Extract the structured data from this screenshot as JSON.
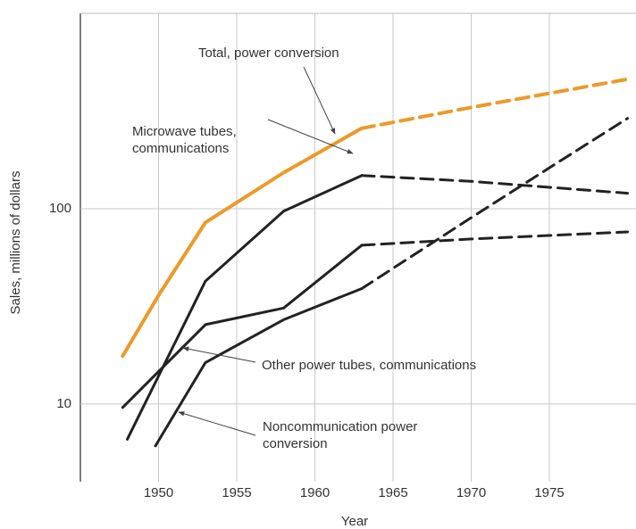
{
  "chart_data": {
    "type": "line",
    "x_label": "Year",
    "y_label": "Sales, millions of dollars",
    "xlim": [
      1945,
      1980
    ],
    "xticks": [
      1950,
      1955,
      1960,
      1965,
      1970,
      1975
    ],
    "ylim": [
      4,
      1000
    ],
    "yticks": [
      10,
      100
    ],
    "log_y": true,
    "grid": true,
    "projection_start": 1963,
    "series": [
      {
        "name": "Total, power conversion",
        "color": "#eb9a2a",
        "x": [
          1947.7,
          1950,
          1953,
          1958,
          1963,
          1970,
          1980
        ],
        "values": [
          17.6,
          36,
          85,
          153,
          258,
          330,
          460
        ]
      },
      {
        "name": "Microwave tubes, communications",
        "color": "#222222",
        "x": [
          1948,
          1953,
          1958,
          1963,
          1970,
          1980
        ],
        "values": [
          6.6,
          42.6,
          97,
          148,
          138,
          120
        ]
      },
      {
        "name": "Other power tubes, communications",
        "color": "#222222",
        "x": [
          1947.7,
          1953,
          1958,
          1963,
          1970,
          1980
        ],
        "values": [
          9.6,
          25.5,
          31,
          65,
          70,
          76
        ]
      },
      {
        "name": "Noncommunication power conversion",
        "color": "#222222",
        "x": [
          1949.8,
          1953,
          1958,
          1963,
          1970,
          1975,
          1980
        ],
        "values": [
          6.1,
          16.3,
          27,
          39,
          90,
          162,
          290
        ]
      }
    ]
  }
}
